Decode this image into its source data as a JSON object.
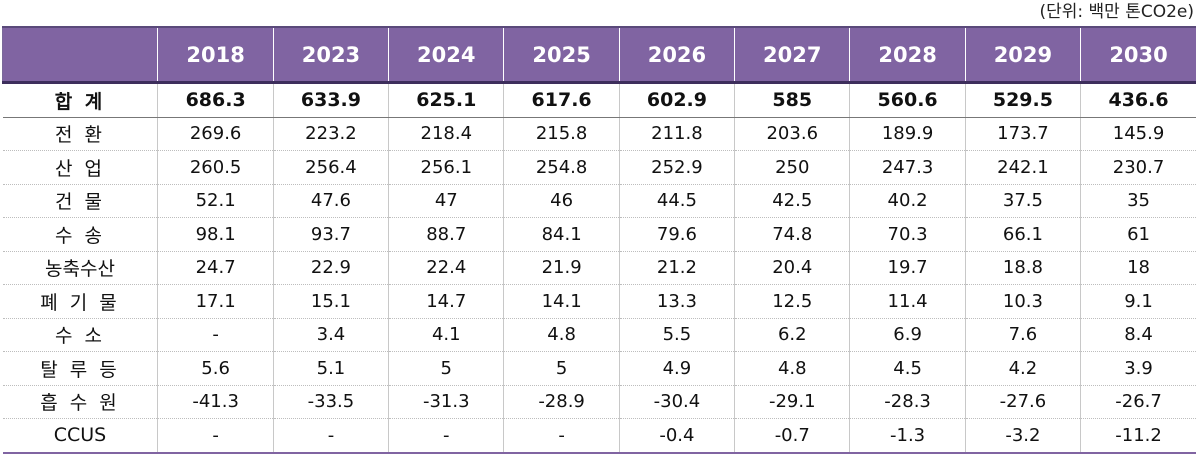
{
  "unit_note": "(단위: 백만 톤CO2e)",
  "years": [
    "2018",
    "2023",
    "2024",
    "2025",
    "2026",
    "2027",
    "2028",
    "2029",
    "2030"
  ],
  "rows": [
    {
      "label": "합 계",
      "values": [
        "686.3",
        "633.9",
        "625.1",
        "617.6",
        "602.9",
        "585",
        "560.6",
        "529.5",
        "436.6"
      ]
    },
    {
      "label": "전 환",
      "values": [
        "269.6",
        "223.2",
        "218.4",
        "215.8",
        "211.8",
        "203.6",
        "189.9",
        "173.7",
        "145.9"
      ]
    },
    {
      "label": "산 업",
      "values": [
        "260.5",
        "256.4",
        "256.1",
        "254.8",
        "252.9",
        "250",
        "247.3",
        "242.1",
        "230.7"
      ]
    },
    {
      "label": "건 물",
      "values": [
        "52.1",
        "47.6",
        "47",
        "46",
        "44.5",
        "42.5",
        "40.2",
        "37.5",
        "35"
      ]
    },
    {
      "label": "수 송",
      "values": [
        "98.1",
        "93.7",
        "88.7",
        "84.1",
        "79.6",
        "74.8",
        "70.3",
        "66.1",
        "61"
      ]
    },
    {
      "label": "농축수산",
      "values": [
        "24.7",
        "22.9",
        "22.4",
        "21.9",
        "21.2",
        "20.4",
        "19.7",
        "18.8",
        "18"
      ]
    },
    {
      "label": "폐 기 물",
      "values": [
        "17.1",
        "15.1",
        "14.7",
        "14.1",
        "13.3",
        "12.5",
        "11.4",
        "10.3",
        "9.1"
      ]
    },
    {
      "label": "수 소",
      "values": [
        "-",
        "3.4",
        "4.1",
        "4.8",
        "5.5",
        "6.2",
        "6.9",
        "7.6",
        "8.4"
      ]
    },
    {
      "label": "탈 루 등",
      "values": [
        "5.6",
        "5.1",
        "5",
        "5",
        "4.9",
        "4.8",
        "4.5",
        "4.2",
        "3.9"
      ]
    },
    {
      "label": "흡 수 원",
      "values": [
        "-41.3",
        "-33.5",
        "-31.3",
        "-28.9",
        "-30.4",
        "-29.1",
        "-28.3",
        "-27.6",
        "-26.7"
      ]
    },
    {
      "label": "CCUS",
      "values": [
        "-",
        "-",
        "-",
        "-",
        "-0.4",
        "-0.7",
        "-1.3",
        "-3.2",
        "-11.2"
      ]
    }
  ]
}
